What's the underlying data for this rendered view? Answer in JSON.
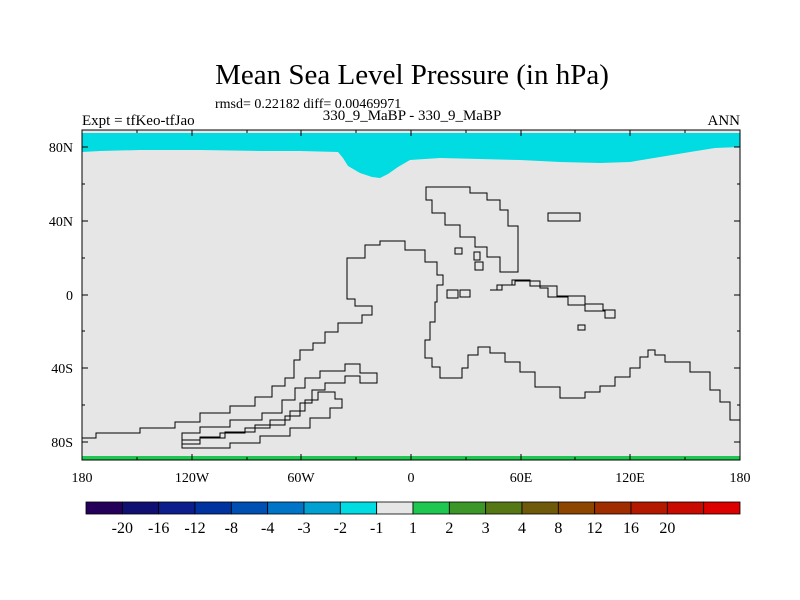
{
  "chart_data": {
    "type": "heatmap",
    "title": "Mean Sea Level Pressure (in hPa)",
    "stats_line": "rmsd= 0.22182 diff= 0.00469971",
    "left_label": "Expt = tfKeo-tfJao",
    "center_label": "330_9_MaBP - 330_9_MaBP",
    "right_label": "ANN",
    "x_ticks": [
      "180",
      "120W",
      "60W",
      "0",
      "60E",
      "120E",
      "180"
    ],
    "y_ticks": [
      "80N",
      "40N",
      "0",
      "40S",
      "80S"
    ],
    "xlim": [
      -180,
      180
    ],
    "ylim": [
      -90,
      90
    ],
    "colorbar": {
      "colors": [
        "#25005a",
        "#101073",
        "#0c1d8c",
        "#0033a0",
        "#0050b4",
        "#0075c8",
        "#00a0d2",
        "#00dce1",
        "#e6e6e6",
        "#1ec850",
        "#3c9628",
        "#557814",
        "#6e5a0a",
        "#8c4600",
        "#a02d00",
        "#b41900",
        "#c80a00",
        "#dc0000"
      ],
      "labels": [
        "-20",
        "-16",
        "-12",
        "-8",
        "-4",
        "-3",
        "-2",
        "-1",
        "1",
        "2",
        "3",
        "4",
        "8",
        "12",
        "16",
        "20"
      ]
    },
    "regions": [
      {
        "name": "north polar negative anomaly",
        "value_range": "-2 to -1",
        "color": "#00dce1"
      },
      {
        "name": "south polar positive anomaly",
        "value_range": "1 to 2",
        "color": "#1ec850"
      },
      {
        "name": "background",
        "value_range": "-1 to 1",
        "color": "#e6e6e6"
      }
    ]
  }
}
